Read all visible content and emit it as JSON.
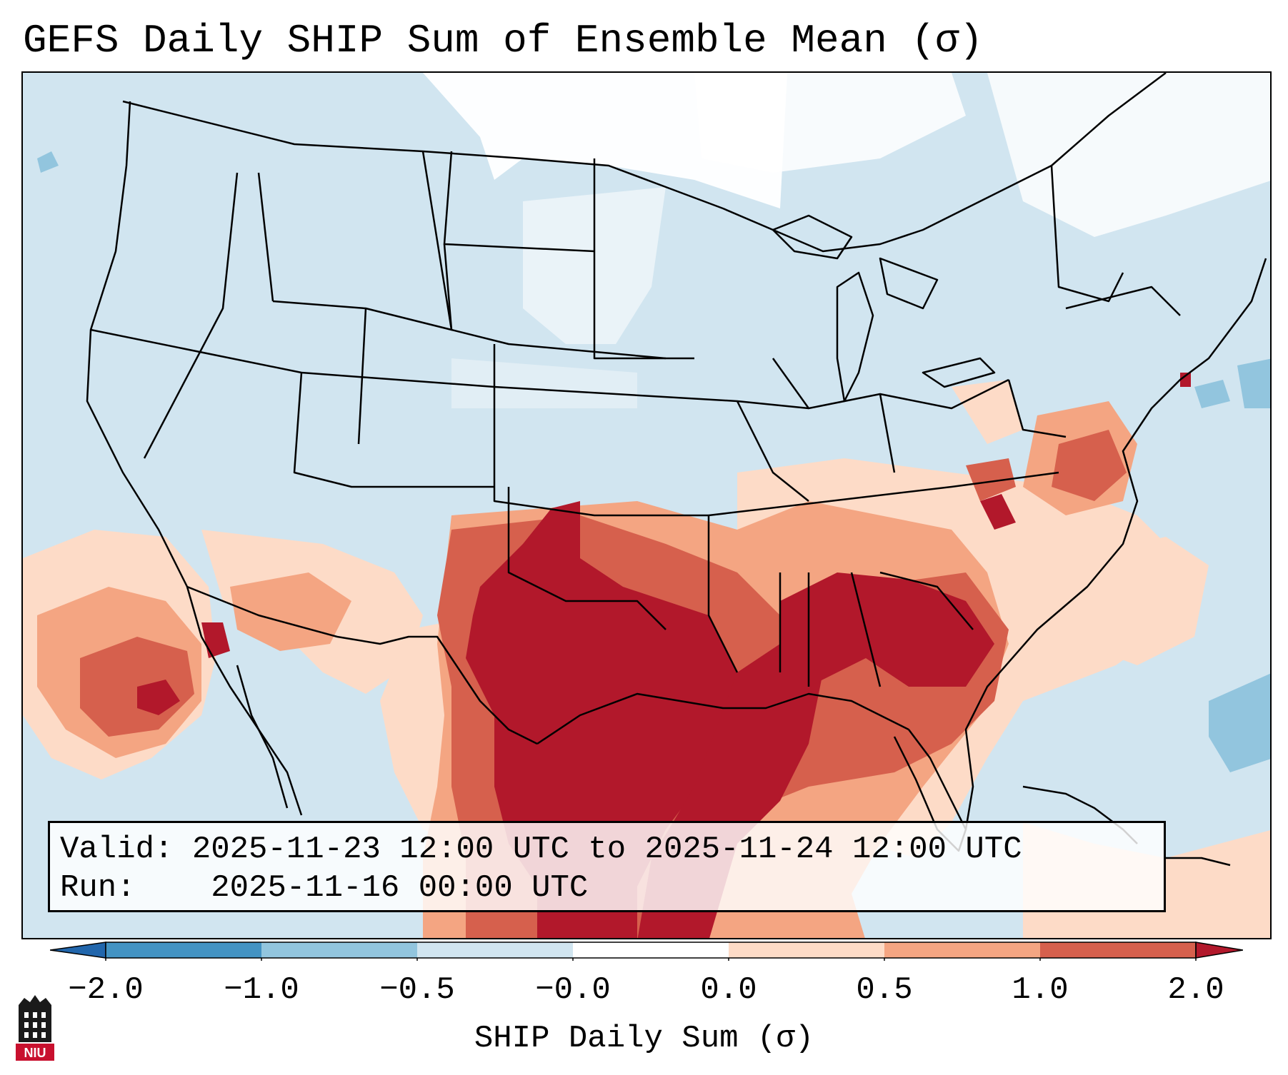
{
  "title": "GEFS Daily SHIP Sum of Ensemble Mean (σ)",
  "info": {
    "valid_label": "Valid:",
    "valid_value": "2025-11-23 12:00 UTC to 2025-11-24 12:00 UTC",
    "run_label": "Run:",
    "run_value": "2025-11-16 00:00 UTC"
  },
  "colorbar": {
    "title": "SHIP Daily Sum (σ)",
    "ticks": [
      "−2.0",
      "−1.0",
      "−0.5",
      "−0.0",
      "0.0",
      "0.5",
      "1.0",
      "2.0"
    ],
    "bins": [
      {
        "range": "< -2.0",
        "color": "#2166ac"
      },
      {
        "range": "-2.0 to -1.0",
        "color": "#4393c3"
      },
      {
        "range": "-1.0 to -0.5",
        "color": "#92c5de"
      },
      {
        "range": "-0.5 to -0.0",
        "color": "#d1e5f0"
      },
      {
        "range": "-0.0 to 0.0",
        "color": "#ffffff"
      },
      {
        "range": "0.0 to 0.5",
        "color": "#fddbc7"
      },
      {
        "range": "0.5 to 1.0",
        "color": "#f4a582"
      },
      {
        "range": "1.0 to 2.0",
        "color": "#d6604d"
      },
      {
        "range": "> 2.0",
        "color": "#b2182b"
      }
    ]
  },
  "logo": {
    "text": "NIU",
    "color": "#c8102e"
  }
}
